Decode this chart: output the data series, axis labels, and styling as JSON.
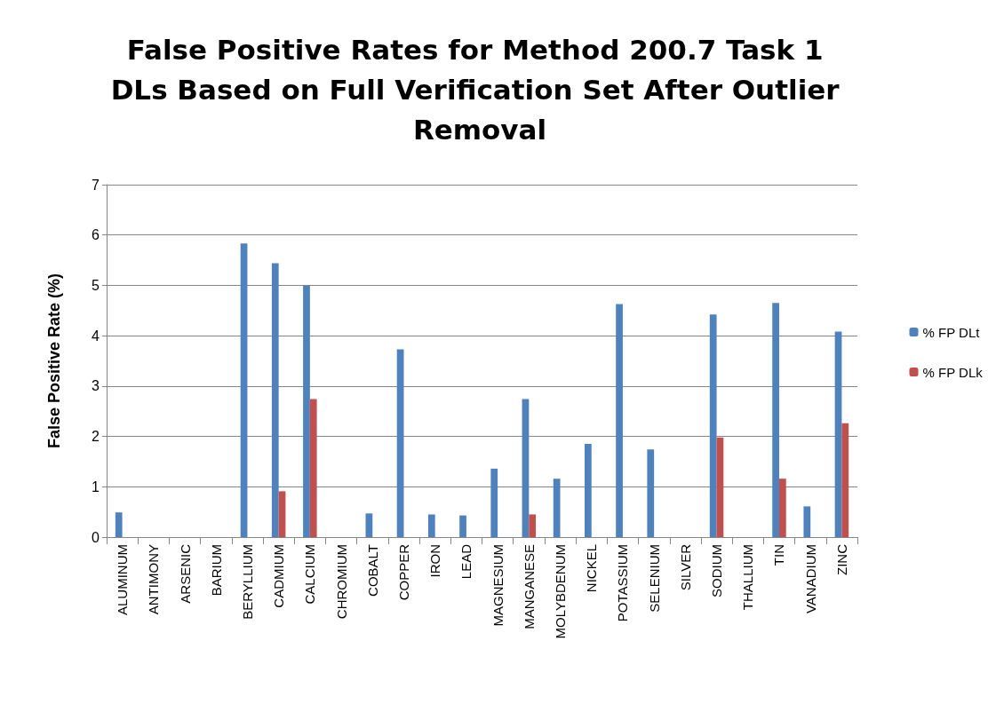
{
  "chart_data": {
    "type": "bar",
    "title": "False Positive Rates for Method 200.7 Task 1 DLs Based on Full Verification Set After Outlier Removal",
    "ylabel": "False Positive Rate (%)",
    "categories": [
      "ALUMINUM",
      "ANTIMONY",
      "ARSENIC",
      "BARIUM",
      "BERYLLIUM",
      "CADMIUM",
      "CALCIUM",
      "CHROMIUM",
      "COBALT",
      "COPPER",
      "IRON",
      "LEAD",
      "MAGNESIUM",
      "MANGANESE",
      "MOLYBDENUM",
      "NICKEL",
      "POTASSIUM",
      "SELENIUM",
      "SILVER",
      "SODIUM",
      "THALLIUM",
      "TIN",
      "VANADIUM",
      "ZINC"
    ],
    "series": [
      {
        "name": "% FP DLt",
        "color": "#4f81bd",
        "values": [
          0.49,
          0,
          0,
          0,
          5.83,
          5.44,
          5.0,
          0,
          0.47,
          3.73,
          0.45,
          0.43,
          1.36,
          2.74,
          1.16,
          1.85,
          4.63,
          1.74,
          0,
          4.42,
          0,
          4.65,
          0.61,
          4.08
        ]
      },
      {
        "name": "% FP DLk",
        "color": "#c0504d",
        "values": [
          0,
          0,
          0,
          0,
          0,
          0.91,
          2.74,
          0,
          0,
          0,
          0,
          0,
          0,
          0.45,
          0,
          0,
          0,
          0,
          0,
          1.98,
          0,
          1.16,
          0,
          2.26
        ]
      }
    ],
    "ylim": [
      0,
      7
    ],
    "yticks": [
      0,
      1,
      2,
      3,
      4,
      5,
      6,
      7
    ],
    "grid": "y",
    "legend": "right"
  }
}
